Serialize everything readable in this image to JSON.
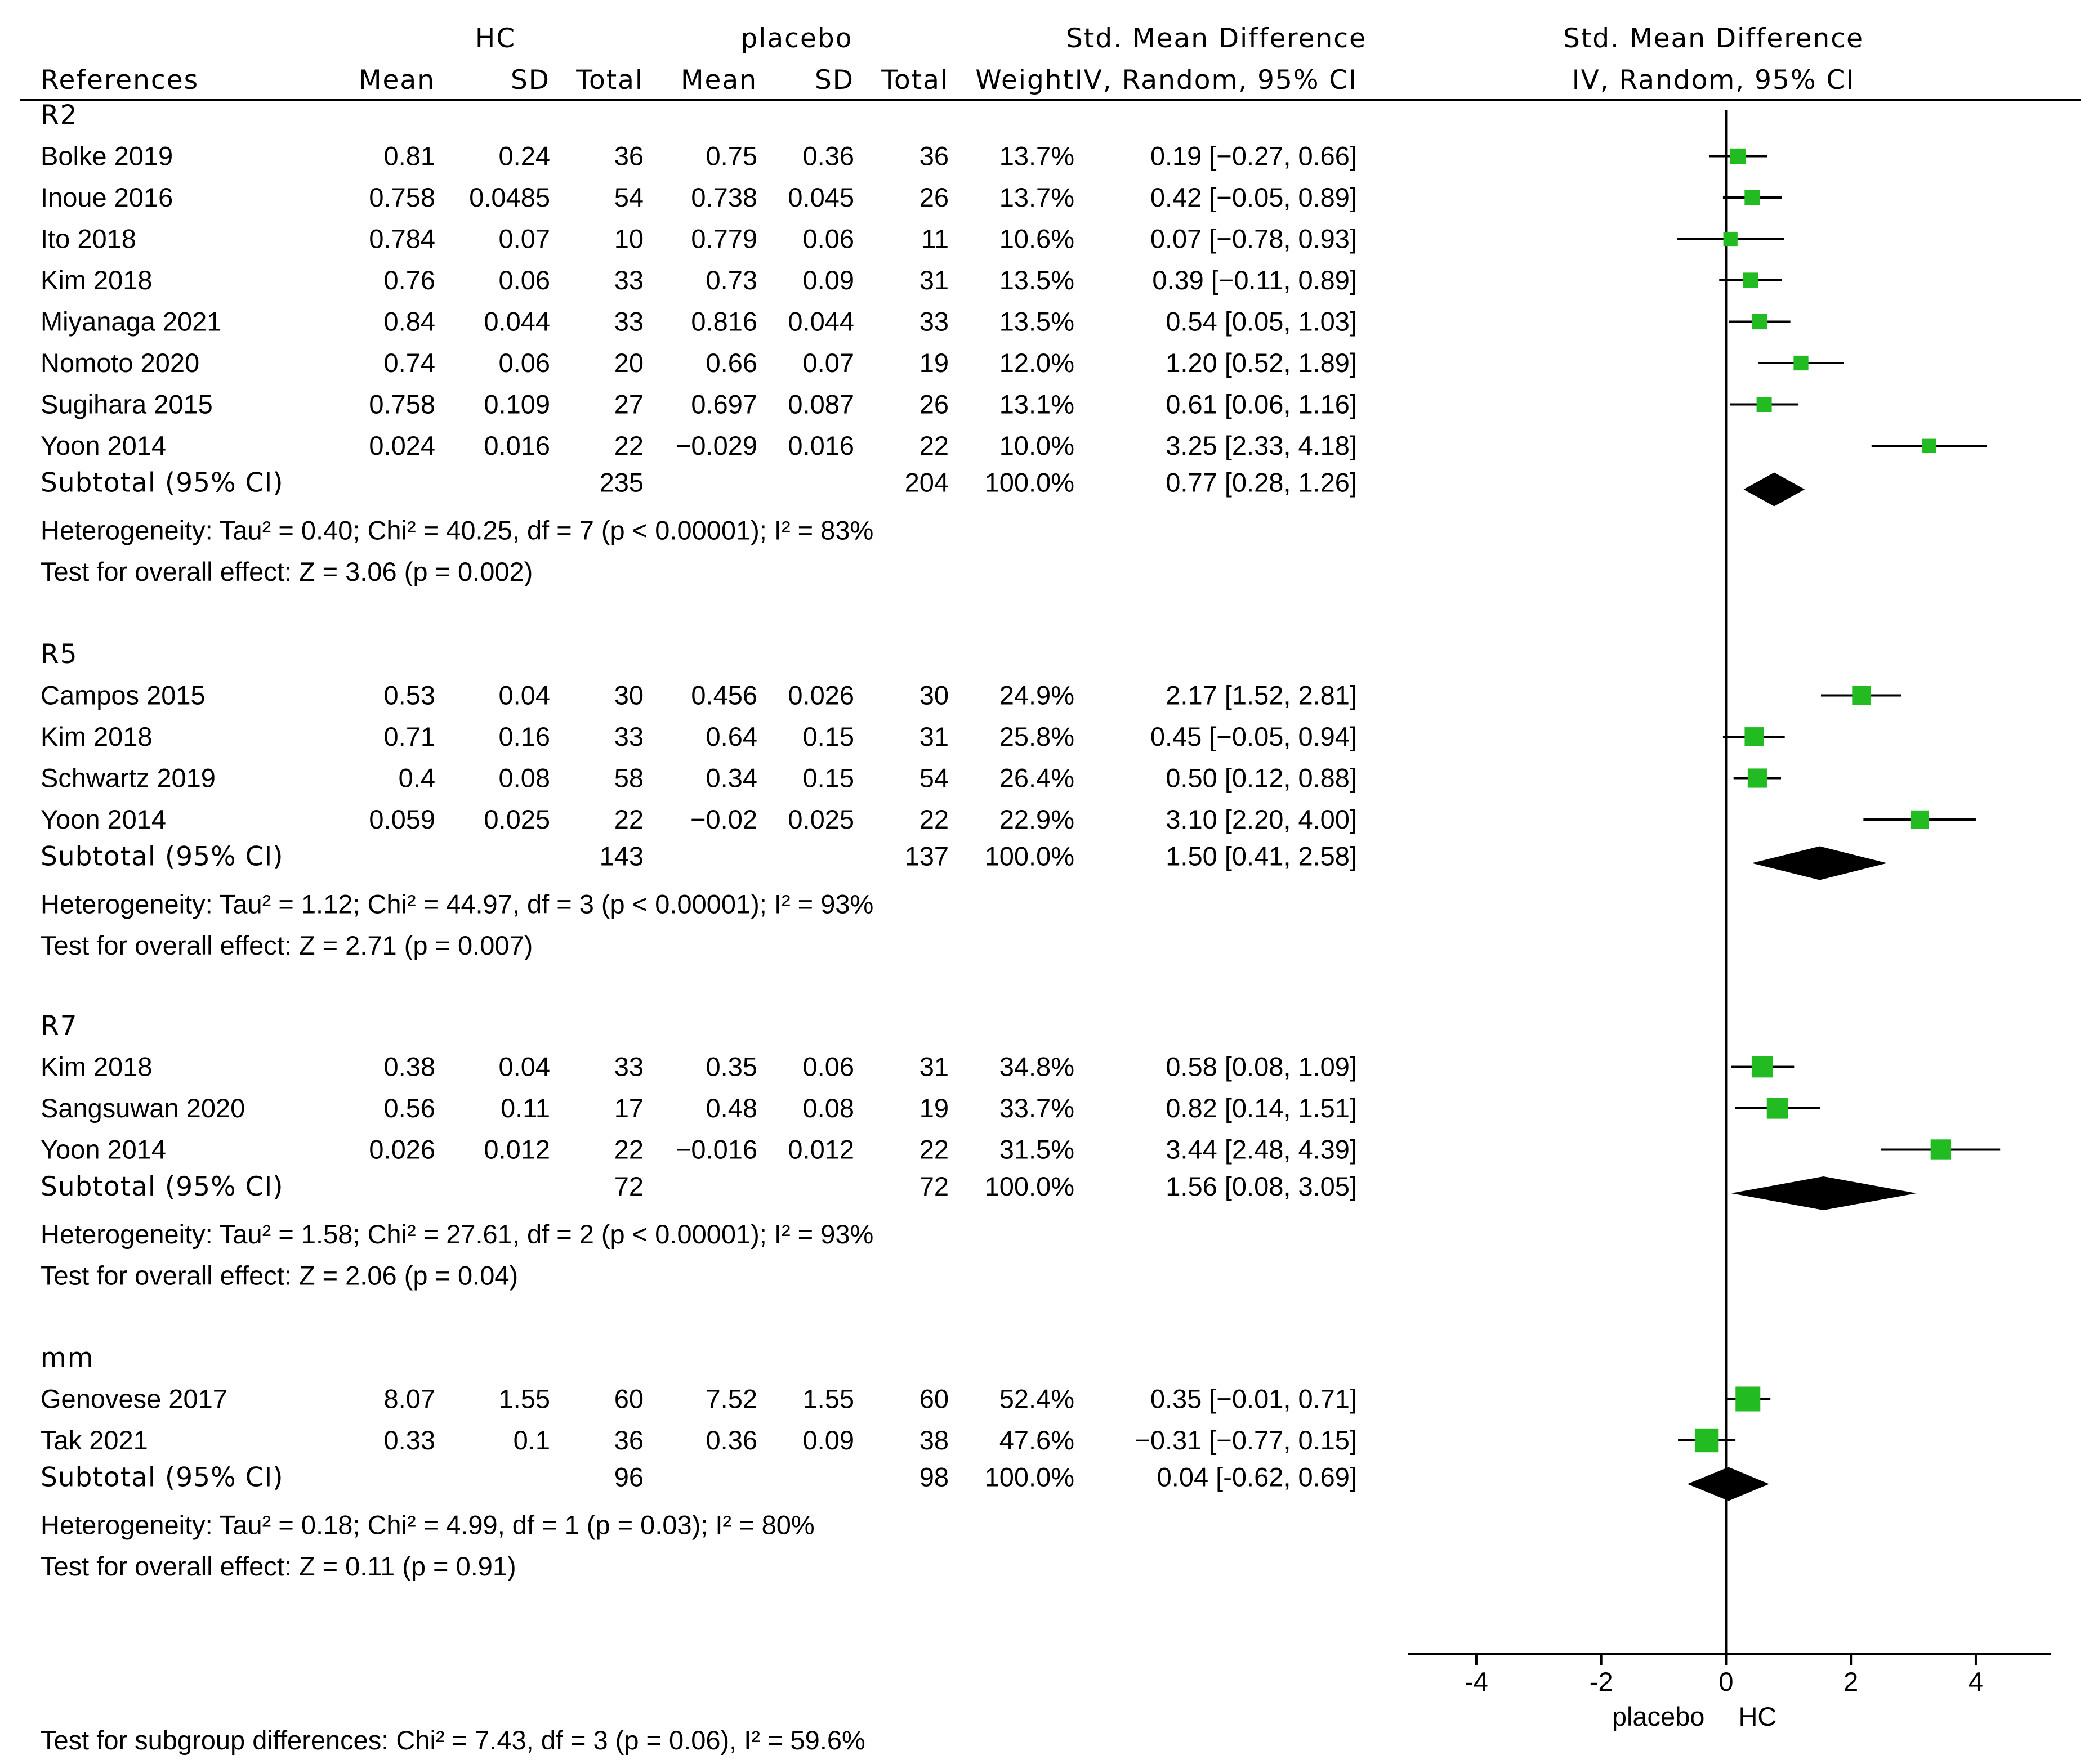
{
  "chart_data": {
    "type": "forest",
    "headers": {
      "group1": "HC",
      "group2": "placebo",
      "smd_title": "Std. Mean Difference",
      "smd_method": "IV, Random, 95% CI",
      "plot_title": "Std. Mean Difference",
      "plot_method": "IV, Random, 95% CI",
      "references": "References",
      "mean": "Mean",
      "sd": "SD",
      "total": "Total",
      "weight": "Weight"
    },
    "subgroups": [
      {
        "name": "R2",
        "studies": [
          {
            "study": "Bolke 2019",
            "m1": "0.81",
            "sd1": "0.24",
            "n1": "36",
            "m2": "0.75",
            "sd2": "0.36",
            "n2": "36",
            "weight": "13.7%",
            "ci_text": "0.19 [−0.27, 0.66]",
            "est": 0.19,
            "lo": -0.27,
            "hi": 0.66,
            "w": 13.7
          },
          {
            "study": "Inoue 2016",
            "m1": "0.758",
            "sd1": "0.0485",
            "n1": "54",
            "m2": "0.738",
            "sd2": "0.045",
            "n2": "26",
            "weight": "13.7%",
            "ci_text": "0.42 [−0.05, 0.89]",
            "est": 0.42,
            "lo": -0.05,
            "hi": 0.89,
            "w": 13.7
          },
          {
            "study": "Ito 2018",
            "m1": "0.784",
            "sd1": "0.07",
            "n1": "10",
            "m2": "0.779",
            "sd2": "0.06",
            "n2": "11",
            "weight": "10.6%",
            "ci_text": "0.07 [−0.78, 0.93]",
            "est": 0.07,
            "lo": -0.78,
            "hi": 0.93,
            "w": 10.6
          },
          {
            "study": "Kim 2018",
            "m1": "0.76",
            "sd1": "0.06",
            "n1": "33",
            "m2": "0.73",
            "sd2": "0.09",
            "n2": "31",
            "weight": "13.5%",
            "ci_text": "0.39 [−0.11, 0.89]",
            "est": 0.39,
            "lo": -0.11,
            "hi": 0.89,
            "w": 13.5
          },
          {
            "study": "Miyanaga 2021",
            "m1": "0.84",
            "sd1": "0.044",
            "n1": "33",
            "m2": "0.816",
            "sd2": "0.044",
            "n2": "33",
            "weight": "13.5%",
            "ci_text": "0.54 [0.05, 1.03]",
            "est": 0.54,
            "lo": 0.05,
            "hi": 1.03,
            "w": 13.5
          },
          {
            "study": "Nomoto 2020",
            "m1": "0.74",
            "sd1": "0.06",
            "n1": "20",
            "m2": "0.66",
            "sd2": "0.07",
            "n2": "19",
            "weight": "12.0%",
            "ci_text": "1.20 [0.52, 1.89]",
            "est": 1.2,
            "lo": 0.52,
            "hi": 1.89,
            "w": 12.0
          },
          {
            "study": "Sugihara 2015",
            "m1": "0.758",
            "sd1": "0.109",
            "n1": "27",
            "m2": "0.697",
            "sd2": "0.087",
            "n2": "26",
            "weight": "13.1%",
            "ci_text": "0.61 [0.06, 1.16]",
            "est": 0.61,
            "lo": 0.06,
            "hi": 1.16,
            "w": 13.1
          },
          {
            "study": "Yoon 2014",
            "m1": "0.024",
            "sd1": "0.016",
            "n1": "22",
            "m2": "−0.029",
            "sd2": "0.016",
            "n2": "22",
            "weight": "10.0%",
            "ci_text": "3.25 [2.33, 4.18]",
            "est": 3.25,
            "lo": 2.33,
            "hi": 4.18,
            "w": 10.0
          }
        ],
        "subtotal": {
          "label": "Subtotal (95% CI)",
          "n1": "235",
          "n2": "204",
          "weight": "100.0%",
          "ci_text": "0.77 [0.28, 1.26]",
          "est": 0.77,
          "lo": 0.28,
          "hi": 1.26
        },
        "heterogeneity": "Heterogeneity: Tau² = 0.40; Chi² = 40.25, df = 7 (p < 0.00001); I² = 83%",
        "overall": "Test for overall effect: Z = 3.06 (p = 0.002)"
      },
      {
        "name": "R5",
        "studies": [
          {
            "study": "Campos 2015",
            "m1": "0.53",
            "sd1": "0.04",
            "n1": "30",
            "m2": "0.456",
            "sd2": "0.026",
            "n2": "30",
            "weight": "24.9%",
            "ci_text": "2.17 [1.52, 2.81]",
            "est": 2.17,
            "lo": 1.52,
            "hi": 2.81,
            "w": 24.9
          },
          {
            "study": "Kim 2018",
            "m1": "0.71",
            "sd1": "0.16",
            "n1": "33",
            "m2": "0.64",
            "sd2": "0.15",
            "n2": "31",
            "weight": "25.8%",
            "ci_text": "0.45 [−0.05, 0.94]",
            "est": 0.45,
            "lo": -0.05,
            "hi": 0.94,
            "w": 25.8
          },
          {
            "study": "Schwartz 2019",
            "m1": "0.4",
            "sd1": "0.08",
            "n1": "58",
            "m2": "0.34",
            "sd2": "0.15",
            "n2": "54",
            "weight": "26.4%",
            "ci_text": "0.50 [0.12, 0.88]",
            "est": 0.5,
            "lo": 0.12,
            "hi": 0.88,
            "w": 26.4
          },
          {
            "study": "Yoon 2014",
            "m1": "0.059",
            "sd1": "0.025",
            "n1": "22",
            "m2": "−0.02",
            "sd2": "0.025",
            "n2": "22",
            "weight": "22.9%",
            "ci_text": "3.10 [2.20, 4.00]",
            "est": 3.1,
            "lo": 2.2,
            "hi": 4.0,
            "w": 22.9
          }
        ],
        "subtotal": {
          "label": "Subtotal (95% CI)",
          "n1": "143",
          "n2": "137",
          "weight": "100.0%",
          "ci_text": "1.50 [0.41, 2.58]",
          "est": 1.5,
          "lo": 0.41,
          "hi": 2.58
        },
        "heterogeneity": "Heterogeneity: Tau² = 1.12; Chi² = 44.97, df = 3 (p < 0.00001); I² = 93%",
        "overall": "Test for overall effect: Z = 2.71 (p = 0.007)"
      },
      {
        "name": "R7",
        "studies": [
          {
            "study": "Kim 2018",
            "m1": "0.38",
            "sd1": "0.04",
            "n1": "33",
            "m2": "0.35",
            "sd2": "0.06",
            "n2": "31",
            "weight": "34.8%",
            "ci_text": "0.58 [0.08, 1.09]",
            "est": 0.58,
            "lo": 0.08,
            "hi": 1.09,
            "w": 34.8
          },
          {
            "study": "Sangsuwan 2020",
            "m1": "0.56",
            "sd1": "0.11",
            "n1": "17",
            "m2": "0.48",
            "sd2": "0.08",
            "n2": "19",
            "weight": "33.7%",
            "ci_text": "0.82 [0.14, 1.51]",
            "est": 0.82,
            "lo": 0.14,
            "hi": 1.51,
            "w": 33.7
          },
          {
            "study": "Yoon 2014",
            "m1": "0.026",
            "sd1": "0.012",
            "n1": "22",
            "m2": "−0.016",
            "sd2": "0.012",
            "n2": "22",
            "weight": "31.5%",
            "ci_text": "3.44 [2.48, 4.39]",
            "est": 3.44,
            "lo": 2.48,
            "hi": 4.39,
            "w": 31.5
          }
        ],
        "subtotal": {
          "label": "Subtotal (95% CI)",
          "n1": "72",
          "n2": "72",
          "weight": "100.0%",
          "ci_text": "1.56 [0.08, 3.05]",
          "est": 1.56,
          "lo": 0.08,
          "hi": 3.05
        },
        "heterogeneity": "Heterogeneity: Tau² = 1.58; Chi² = 27.61, df = 2 (p < 0.00001); I² = 93%",
        "overall": "Test for overall effect: Z = 2.06 (p = 0.04)"
      },
      {
        "name": "mm",
        "studies": [
          {
            "study": "Genovese 2017",
            "m1": "8.07",
            "sd1": "1.55",
            "n1": "60",
            "m2": "7.52",
            "sd2": "1.55",
            "n2": "60",
            "weight": "52.4%",
            "ci_text": "0.35 [−0.01, 0.71]",
            "est": 0.35,
            "lo": -0.01,
            "hi": 0.71,
            "w": 52.4
          },
          {
            "study": "Tak 2021",
            "m1": "0.33",
            "sd1": "0.1",
            "n1": "36",
            "m2": "0.36",
            "sd2": "0.09",
            "n2": "38",
            "weight": "47.6%",
            "ci_text": "−0.31 [−0.77, 0.15]",
            "est": -0.31,
            "lo": -0.77,
            "hi": 0.15,
            "w": 47.6
          }
        ],
        "subtotal": {
          "label": "Subtotal (95% CI)",
          "n1": "96",
          "n2": "98",
          "weight": "100.0%",
          "ci_text": "0.04 [-0.62, 0.69]",
          "est": 0.04,
          "lo": -0.62,
          "hi": 0.69
        },
        "heterogeneity": "Heterogeneity: Tau² = 0.18; Chi² = 4.99, df = 1 (p = 0.03); I² = 80%",
        "overall": "Test for overall effect: Z = 0.11 (p = 0.91)"
      }
    ],
    "subgroup_test": "Test for subgroup differences: Chi² = 7.43, df = 3 (p = 0.06), I² = 59.6%",
    "axis": {
      "xlim": [
        -5.1,
        5.2
      ],
      "ticks": [
        -4,
        -2,
        0,
        2,
        4
      ],
      "tick_labels": [
        "-4",
        "-2",
        "0",
        "2",
        "4"
      ],
      "left_label": "placebo",
      "right_label": "HC"
    },
    "colors": {
      "point": "#22bb22",
      "diamond": "#000000",
      "line": "#000000"
    }
  }
}
